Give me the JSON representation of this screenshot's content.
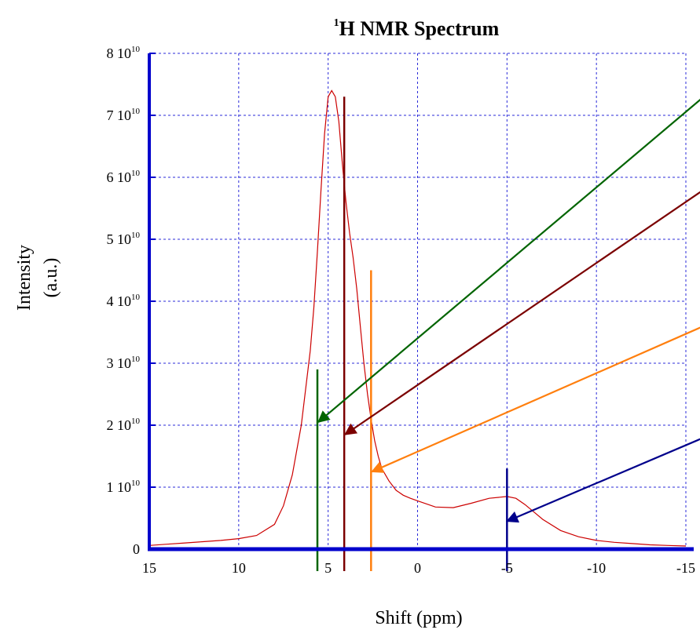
{
  "chart_data": {
    "type": "line",
    "title": "H NMR Spectrum",
    "title_superscript": "1",
    "xlabel": "Shift (ppm)",
    "ylabel_line1": "Intensity",
    "ylabel_line2": "(a.u.)",
    "xlim": [
      15,
      -15
    ],
    "ylim": [
      0,
      80000000000.0
    ],
    "grid": true,
    "x_ticks": [
      15,
      10,
      5,
      0,
      -5,
      -10,
      -15
    ],
    "x_tick_labels": [
      "15",
      "10",
      "5",
      "0",
      "-5",
      "-10",
      "-15"
    ],
    "y_ticks": [
      0,
      10000000000.0,
      20000000000.0,
      30000000000.0,
      40000000000.0,
      50000000000.0,
      60000000000.0,
      70000000000.0,
      80000000000.0
    ],
    "y_tick_mantissa": [
      "0",
      "1 10",
      "2 10",
      "3 10",
      "4 10",
      "5 10",
      "6 10",
      "7 10",
      "8 10"
    ],
    "y_tick_exponent": [
      "",
      "10",
      "10",
      "10",
      "10",
      "10",
      "10",
      "10",
      "10"
    ],
    "series": [
      {
        "color": "#cc0000",
        "x": [
          15,
          14,
          13,
          12,
          11,
          10,
          9,
          8,
          7.5,
          7,
          6.5,
          6,
          5.8,
          5.6,
          5.4,
          5.2,
          5.0,
          4.8,
          4.6,
          4.4,
          4.2,
          4.0,
          3.8,
          3.6,
          3.4,
          3.2,
          3.0,
          2.8,
          2.6,
          2.4,
          2.2,
          2.0,
          1.6,
          1.2,
          0.8,
          0.4,
          0,
          -1,
          -2,
          -3,
          -4,
          -5,
          -5.5,
          -6,
          -6.5,
          -7,
          -8,
          -9,
          -10,
          -11,
          -12,
          -13,
          -14,
          -15
        ],
        "y": [
          600000000.0,
          800000000.0,
          1000000000.0,
          1200000000.0,
          1400000000.0,
          1700000000.0,
          2200000000.0,
          4000000000.0,
          7000000000.0,
          12000000000.0,
          20000000000.0,
          32000000000.0,
          39000000000.0,
          48000000000.0,
          58000000000.0,
          67000000000.0,
          73000000000.0,
          74000000000.0,
          73000000000.0,
          69000000000.0,
          62000000000.0,
          56000000000.0,
          51000000000.0,
          47000000000.0,
          42000000000.0,
          36000000000.0,
          30000000000.0,
          25000000000.0,
          21000000000.0,
          17500000000.0,
          15000000000.0,
          13000000000.0,
          11000000000.0,
          9500000000.0,
          8700000000.0,
          8200000000.0,
          7800000000.0,
          6800000000.0,
          6700000000.0,
          7400000000.0,
          8200000000.0,
          8500000000.0,
          8200000000.0,
          7200000000.0,
          6000000000.0,
          4800000000.0,
          3000000000.0,
          2000000000.0,
          1400000000.0,
          1100000000.0,
          900000000.0,
          700000000.0,
          600000000.0,
          500000000.0
        ]
      }
    ],
    "markers": [
      {
        "x": 5.6,
        "y_top": 29000000000.0,
        "color": "#006400"
      },
      {
        "x": 4.1,
        "y_top": 73000000000.0,
        "color": "#7b0000"
      },
      {
        "x": 2.6,
        "y_top": 45000000000.0,
        "color": "#ff7f0e"
      },
      {
        "x": -5.0,
        "y_top": 13000000000.0,
        "color": "#00008b"
      }
    ],
    "arrows": [
      {
        "color": "#006400",
        "from_x": -16,
        "from_y": 73000000000.0,
        "to_x": 5.55,
        "to_y": 20500000000.0
      },
      {
        "color": "#7b0000",
        "from_x": -16,
        "from_y": 58000000000.0,
        "to_x": 4.05,
        "to_y": 18500000000.0
      },
      {
        "color": "#ff7f0e",
        "from_x": -16,
        "from_y": 36000000000.0,
        "to_x": 2.55,
        "to_y": 12500000000.0
      },
      {
        "color": "#00008b",
        "from_x": -16,
        "from_y": 18000000000.0,
        "to_x": -5.0,
        "to_y": 4500000000.0
      }
    ]
  }
}
